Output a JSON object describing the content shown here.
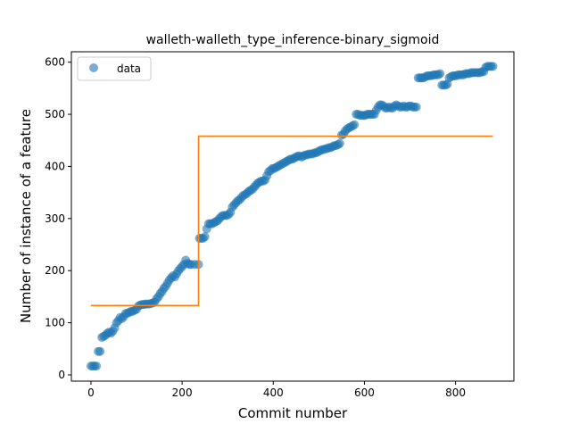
{
  "chart_data": {
    "type": "scatter",
    "title": "walleth-walleth_type_inference-binary_sigmoid",
    "xlabel": "Commit number",
    "ylabel": "Number of instance of a feature",
    "xlim": [
      -43,
      928
    ],
    "ylim": [
      -12,
      620
    ],
    "xticks": [
      0,
      200,
      400,
      600,
      800
    ],
    "yticks": [
      0,
      100,
      200,
      300,
      400,
      500,
      600
    ],
    "grid": false,
    "legend": {
      "placement": "top-left",
      "entries": [
        "data"
      ]
    },
    "series": [
      {
        "name": "data",
        "kind": "scatter",
        "color": "#1f77b4",
        "points": [
          [
            0,
            17
          ],
          [
            4,
            17
          ],
          [
            8,
            17
          ],
          [
            12,
            17
          ],
          [
            16,
            45
          ],
          [
            20,
            45
          ],
          [
            24,
            72
          ],
          [
            28,
            74
          ],
          [
            32,
            76
          ],
          [
            36,
            80
          ],
          [
            40,
            82
          ],
          [
            44,
            80
          ],
          [
            48,
            84
          ],
          [
            52,
            90
          ],
          [
            56,
            100
          ],
          [
            60,
            104
          ],
          [
            64,
            110
          ],
          [
            68,
            108
          ],
          [
            72,
            112
          ],
          [
            76,
            118
          ],
          [
            80,
            118
          ],
          [
            84,
            120
          ],
          [
            88,
            122
          ],
          [
            92,
            122
          ],
          [
            96,
            124
          ],
          [
            100,
            126
          ],
          [
            104,
            132
          ],
          [
            108,
            134
          ],
          [
            112,
            135
          ],
          [
            116,
            135
          ],
          [
            120,
            136
          ],
          [
            124,
            136
          ],
          [
            128,
            136
          ],
          [
            132,
            137
          ],
          [
            136,
            138
          ],
          [
            140,
            140
          ],
          [
            144,
            146
          ],
          [
            148,
            150
          ],
          [
            152,
            156
          ],
          [
            156,
            160
          ],
          [
            160,
            166
          ],
          [
            164,
            170
          ],
          [
            168,
            176
          ],
          [
            172,
            182
          ],
          [
            176,
            186
          ],
          [
            180,
            190
          ],
          [
            184,
            188
          ],
          [
            188,
            194
          ],
          [
            192,
            200
          ],
          [
            196,
            204
          ],
          [
            200,
            208
          ],
          [
            204,
            212
          ],
          [
            208,
            220
          ],
          [
            212,
            214
          ],
          [
            216,
            212
          ],
          [
            220,
            212
          ],
          [
            228,
            212
          ],
          [
            236,
            212
          ],
          [
            238,
            262
          ],
          [
            242,
            262
          ],
          [
            246,
            262
          ],
          [
            250,
            265
          ],
          [
            254,
            280
          ],
          [
            258,
            290
          ],
          [
            262,
            290
          ],
          [
            266,
            290
          ],
          [
            270,
            292
          ],
          [
            274,
            294
          ],
          [
            278,
            296
          ],
          [
            282,
            300
          ],
          [
            286,
            304
          ],
          [
            290,
            306
          ],
          [
            294,
            306
          ],
          [
            298,
            306
          ],
          [
            302,
            308
          ],
          [
            306,
            312
          ],
          [
            310,
            322
          ],
          [
            314,
            326
          ],
          [
            318,
            330
          ],
          [
            322,
            334
          ],
          [
            326,
            336
          ],
          [
            330,
            340
          ],
          [
            334,
            344
          ],
          [
            338,
            346
          ],
          [
            342,
            348
          ],
          [
            346,
            352
          ],
          [
            350,
            354
          ],
          [
            354,
            356
          ],
          [
            358,
            360
          ],
          [
            362,
            364
          ],
          [
            366,
            368
          ],
          [
            370,
            370
          ],
          [
            374,
            372
          ],
          [
            378,
            372
          ],
          [
            382,
            374
          ],
          [
            386,
            382
          ],
          [
            390,
            390
          ],
          [
            394,
            392
          ],
          [
            398,
            396
          ],
          [
            402,
            396
          ],
          [
            406,
            398
          ],
          [
            410,
            400
          ],
          [
            414,
            402
          ],
          [
            418,
            404
          ],
          [
            422,
            406
          ],
          [
            426,
            408
          ],
          [
            430,
            410
          ],
          [
            434,
            412
          ],
          [
            438,
            414
          ],
          [
            442,
            414
          ],
          [
            446,
            416
          ],
          [
            450,
            418
          ],
          [
            454,
            420
          ],
          [
            458,
            420
          ],
          [
            462,
            418
          ],
          [
            466,
            420
          ],
          [
            470,
            422
          ],
          [
            474,
            422
          ],
          [
            478,
            424
          ],
          [
            482,
            424
          ],
          [
            486,
            424
          ],
          [
            490,
            426
          ],
          [
            494,
            426
          ],
          [
            498,
            428
          ],
          [
            502,
            430
          ],
          [
            506,
            432
          ],
          [
            510,
            432
          ],
          [
            514,
            434
          ],
          [
            518,
            434
          ],
          [
            522,
            436
          ],
          [
            526,
            436
          ],
          [
            530,
            438
          ],
          [
            534,
            440
          ],
          [
            538,
            440
          ],
          [
            542,
            442
          ],
          [
            546,
            444
          ],
          [
            550,
            460
          ],
          [
            554,
            462
          ],
          [
            558,
            468
          ],
          [
            562,
            472
          ],
          [
            566,
            474
          ],
          [
            570,
            476
          ],
          [
            574,
            478
          ],
          [
            578,
            480
          ],
          [
            582,
            500
          ],
          [
            586,
            500
          ],
          [
            590,
            498
          ],
          [
            594,
            498
          ],
          [
            598,
            498
          ],
          [
            602,
            498
          ],
          [
            606,
            500
          ],
          [
            610,
            500
          ],
          [
            614,
            500
          ],
          [
            618,
            500
          ],
          [
            622,
            500
          ],
          [
            626,
            508
          ],
          [
            630,
            514
          ],
          [
            634,
            518
          ],
          [
            638,
            518
          ],
          [
            642,
            516
          ],
          [
            646,
            512
          ],
          [
            650,
            512
          ],
          [
            654,
            514
          ],
          [
            658,
            512
          ],
          [
            662,
            512
          ],
          [
            666,
            516
          ],
          [
            670,
            518
          ],
          [
            674,
            516
          ],
          [
            678,
            514
          ],
          [
            682,
            514
          ],
          [
            686,
            516
          ],
          [
            690,
            514
          ],
          [
            694,
            514
          ],
          [
            698,
            516
          ],
          [
            702,
            516
          ],
          [
            706,
            514
          ],
          [
            710,
            514
          ],
          [
            714,
            514
          ],
          [
            718,
            570
          ],
          [
            722,
            570
          ],
          [
            726,
            570
          ],
          [
            730,
            570
          ],
          [
            734,
            572
          ],
          [
            738,
            574
          ],
          [
            742,
            574
          ],
          [
            746,
            574
          ],
          [
            750,
            575
          ],
          [
            754,
            576
          ],
          [
            758,
            576
          ],
          [
            762,
            576
          ],
          [
            766,
            578
          ],
          [
            770,
            556
          ],
          [
            774,
            556
          ],
          [
            778,
            556
          ],
          [
            782,
            558
          ],
          [
            786,
            570
          ],
          [
            790,
            572
          ],
          [
            794,
            574
          ],
          [
            798,
            574
          ],
          [
            802,
            574
          ],
          [
            806,
            576
          ],
          [
            810,
            576
          ],
          [
            814,
            576
          ],
          [
            818,
            576
          ],
          [
            822,
            578
          ],
          [
            826,
            578
          ],
          [
            830,
            578
          ],
          [
            834,
            580
          ],
          [
            838,
            580
          ],
          [
            842,
            580
          ],
          [
            846,
            580
          ],
          [
            850,
            580
          ],
          [
            854,
            580
          ],
          [
            858,
            582
          ],
          [
            862,
            582
          ],
          [
            866,
            590
          ],
          [
            870,
            592
          ],
          [
            874,
            592
          ],
          [
            878,
            592
          ],
          [
            882,
            592
          ]
        ]
      },
      {
        "name": "",
        "kind": "line",
        "color": "#ff7f0e",
        "points": [
          [
            0,
            133
          ],
          [
            236,
            133
          ],
          [
            236,
            458
          ],
          [
            882,
            458
          ]
        ]
      }
    ]
  }
}
